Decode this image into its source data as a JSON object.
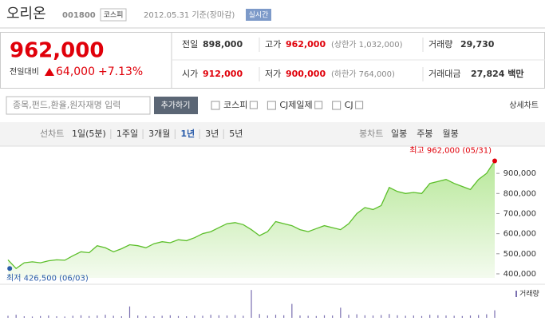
{
  "header": {
    "name": "오리온",
    "code": "001800",
    "market": "코스피",
    "date": "2012.05.31 기준(장마감)",
    "badge": "실시간"
  },
  "price": {
    "current": "962,000",
    "change_label": "전일대비",
    "change": "64,000",
    "percent": "+7.13%"
  },
  "stats": [
    [
      {
        "label": "전일",
        "value": "898,000"
      },
      {
        "label": "고가",
        "value": "962,000",
        "note": "(상한가 1,032,000)"
      },
      {
        "label": "거래량",
        "value": "29,730"
      }
    ],
    [
      {
        "label": "시가",
        "value": "912,000"
      },
      {
        "label": "저가",
        "value": "900,000",
        "note": "(하한가 764,000)"
      },
      {
        "label": "거래대금",
        "value": "27,824 백만"
      }
    ]
  ],
  "search": {
    "placeholder": "종목,펀드,환율,원자재명 입력",
    "button": "추가하기",
    "compare": [
      "코스피",
      "CJ제일제",
      "CJ"
    ],
    "detail": "상세차트"
  },
  "tabs": {
    "line_label": "선차트",
    "periods": [
      "1일(5분)",
      "1주일",
      "3개월",
      "1년",
      "3년",
      "5년"
    ],
    "active_index": 3,
    "candle_label": "봉차트",
    "candles": [
      "일봉",
      "주봉",
      "월봉"
    ]
  },
  "chart_data": {
    "type": "area",
    "color": "#5cbf2a",
    "values": [
      470000,
      426500,
      455000,
      460000,
      455000,
      465000,
      470000,
      468000,
      490000,
      510000,
      505000,
      540000,
      530000,
      510000,
      525000,
      545000,
      540000,
      530000,
      550000,
      560000,
      555000,
      570000,
      565000,
      580000,
      600000,
      610000,
      630000,
      650000,
      655000,
      645000,
      620000,
      590000,
      610000,
      660000,
      650000,
      640000,
      620000,
      610000,
      625000,
      640000,
      630000,
      620000,
      650000,
      700000,
      730000,
      720000,
      740000,
      830000,
      810000,
      800000,
      805000,
      800000,
      850000,
      860000,
      870000,
      850000,
      835000,
      820000,
      870000,
      900000,
      962000
    ],
    "ylim": [
      380000,
      980000
    ],
    "yticks": [
      {
        "value": 400000,
        "label": "400,000"
      },
      {
        "value": 500000,
        "label": "500,000"
      },
      {
        "value": 600000,
        "label": "600,000"
      },
      {
        "value": 700000,
        "label": "700,000"
      },
      {
        "value": 800000,
        "label": "800,000"
      },
      {
        "value": 900000,
        "label": "900,000"
      }
    ],
    "high_label": "최고 962,000 (05/31)",
    "low_label": "최저 426,500 (06/03)",
    "volume": {
      "label": "거래량",
      "color": "#7a6fb0",
      "ylim": [
        0,
        120000
      ],
      "values": [
        8000,
        12000,
        6000,
        5000,
        7000,
        9000,
        6000,
        5000,
        8000,
        10000,
        7000,
        9000,
        12000,
        8000,
        6000,
        45000,
        9000,
        7000,
        6000,
        8000,
        10000,
        7000,
        6000,
        9000,
        8000,
        12000,
        10000,
        9000,
        11000,
        8000,
        110000,
        15000,
        9000,
        12000,
        10000,
        55000,
        9000,
        8000,
        7000,
        10000,
        9000,
        40000,
        12000,
        14000,
        10000,
        9000,
        11000,
        15000,
        10000,
        8000,
        9000,
        7000,
        12000,
        10000,
        9000,
        8000,
        7000,
        9000,
        11000,
        14000,
        29730
      ]
    }
  }
}
